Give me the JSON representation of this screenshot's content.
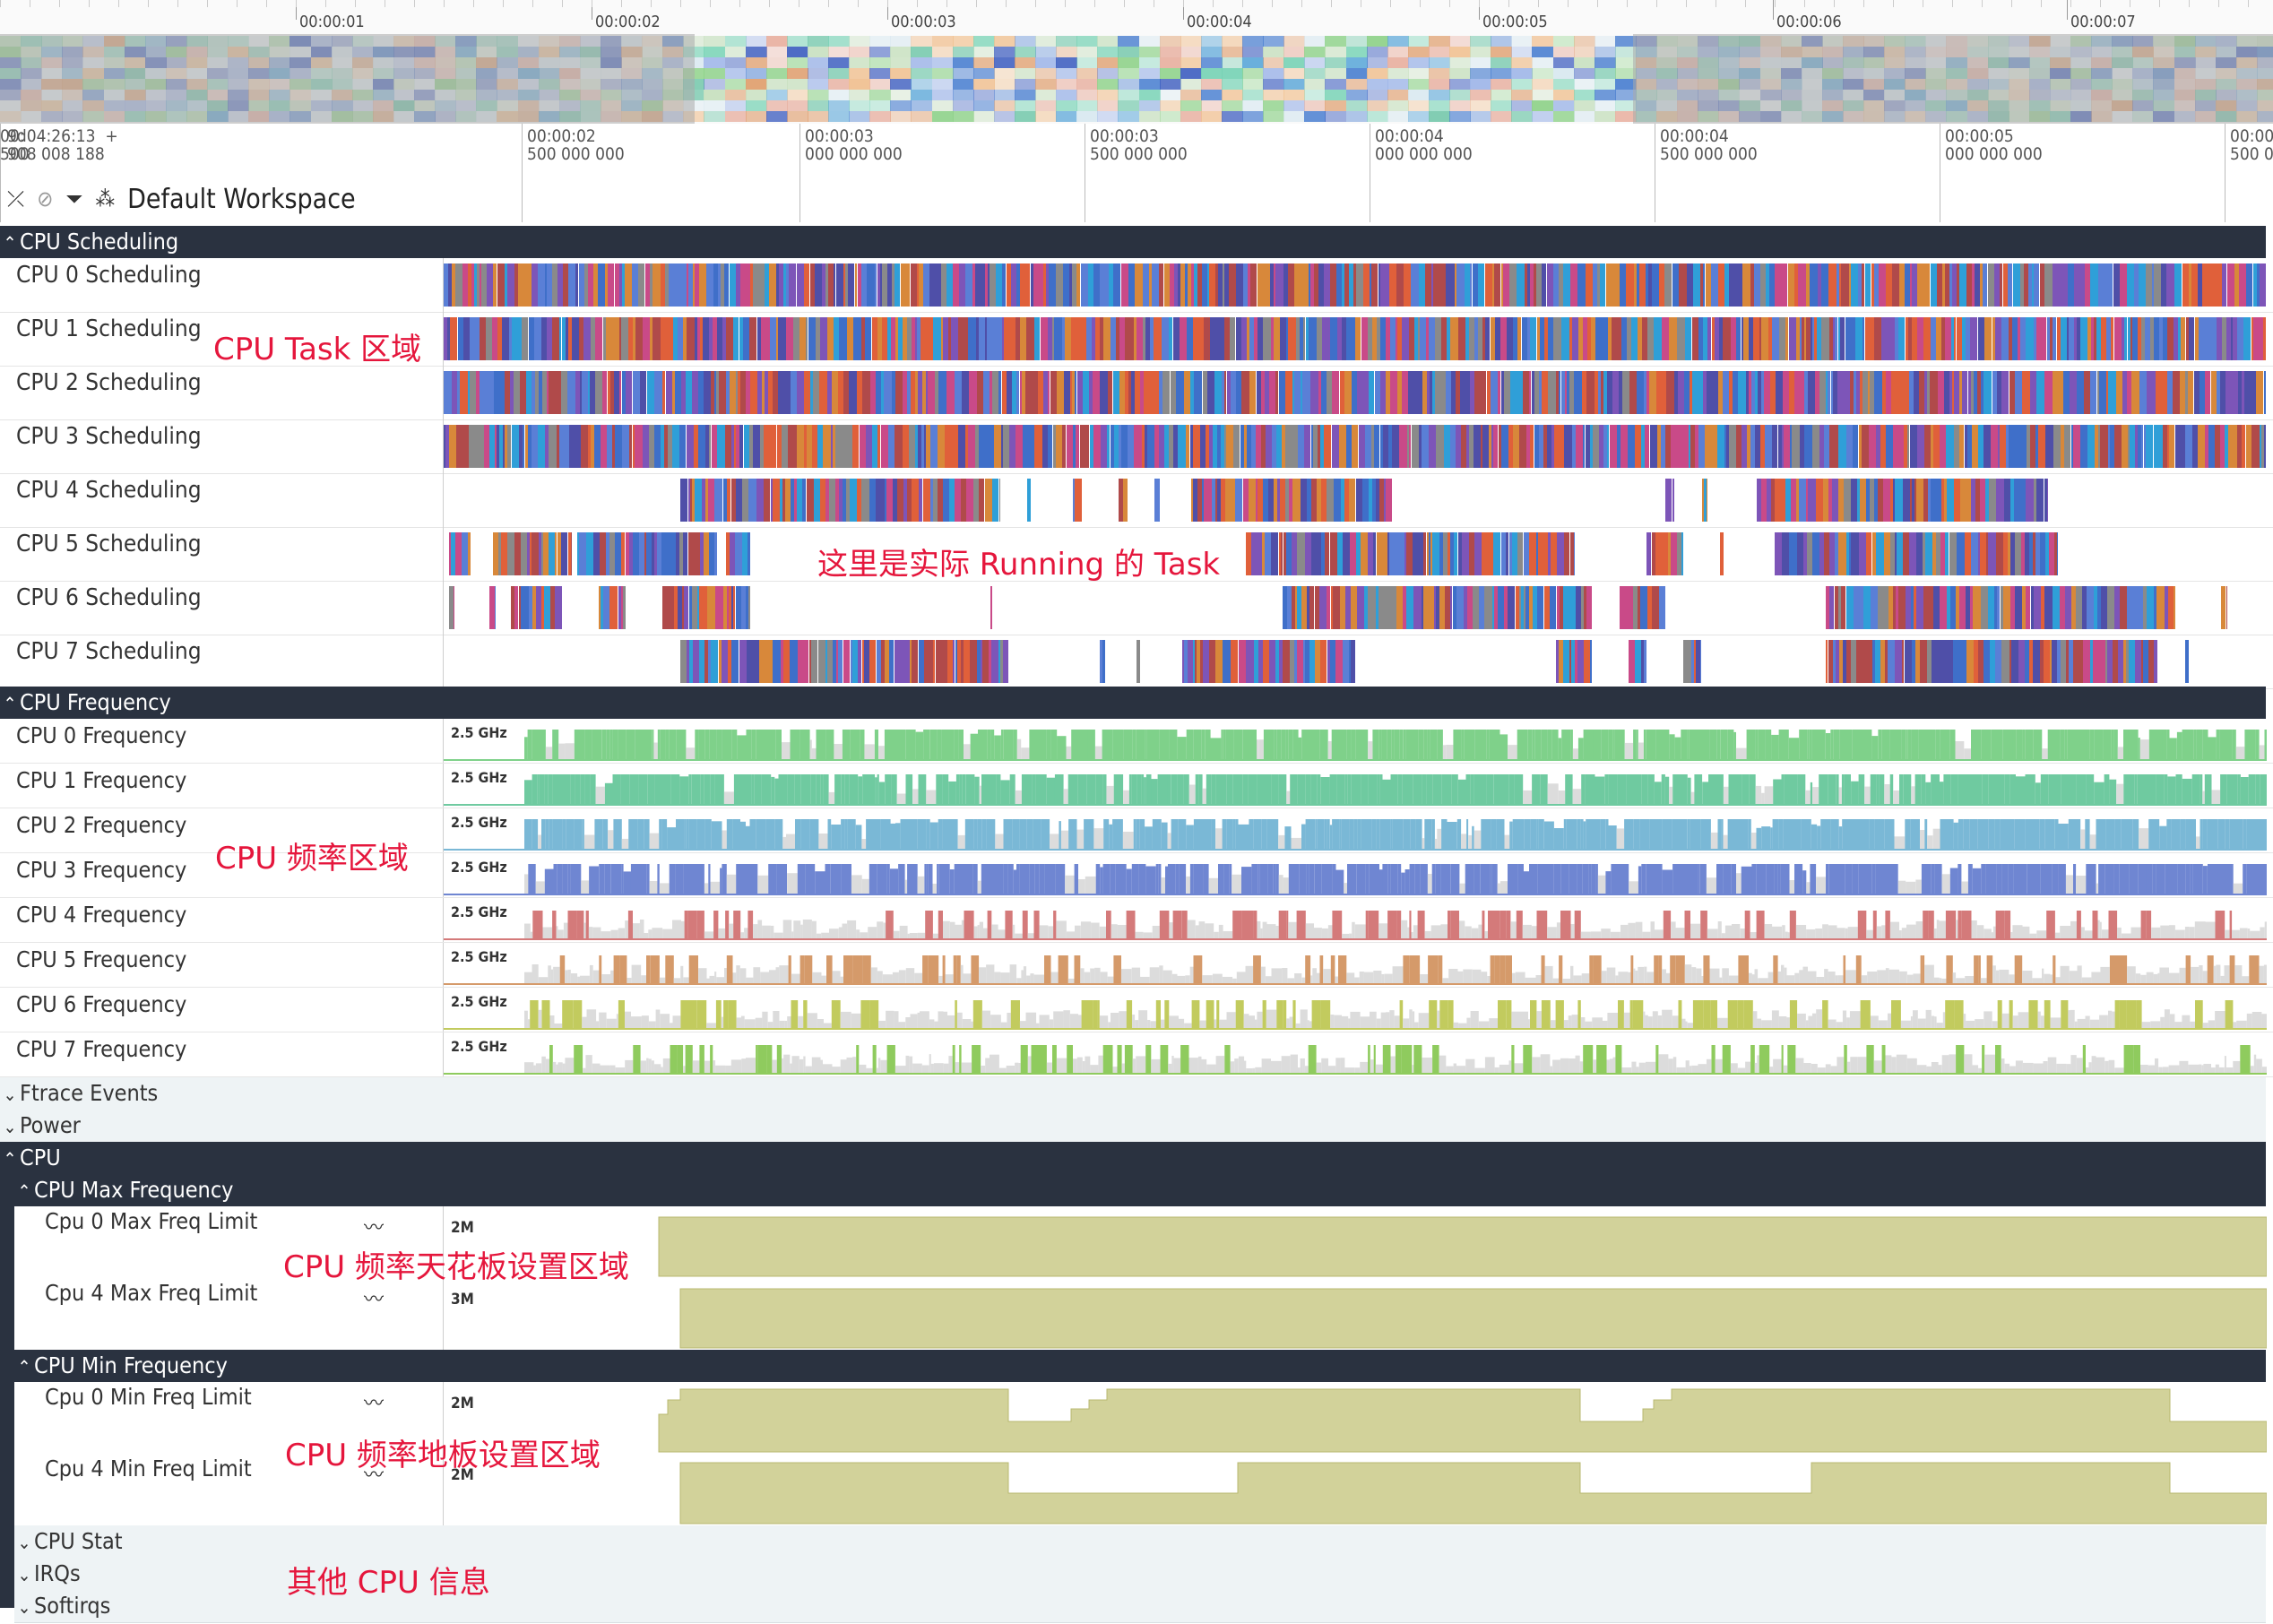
{
  "overview": {
    "ticks": [
      "00:00:01",
      "00:00:02",
      "00:00:03",
      "00:00:04",
      "00:00:05",
      "00:00:06",
      "00:00:07"
    ]
  },
  "timebar": {
    "origin": "9d04:26:13  +\n908 008 188",
    "ticks": [
      "00:00:02\n500 000 000",
      "00:00:03\n000 000 000",
      "00:00:03\n500 000 000",
      "00:00:04\n000 000 000",
      "00:00:04\n500 000 000",
      "00:00:05\n000 000 000",
      "00:00:05\n500 000 000",
      "00:\n500"
    ]
  },
  "toolbar": {
    "collapse_icon": "⤫",
    "unpin_icon": "⊘",
    "filter_icon": "⏷",
    "workspace_icon": "⁂",
    "workspace_title": "Default Workspace"
  },
  "groups": {
    "cpu_scheduling": "CPU Scheduling",
    "cpu_frequency": "CPU Frequency",
    "ftrace": "Ftrace Events",
    "power": "Power",
    "cpu": "CPU",
    "cpu_max_freq": "CPU Max Frequency",
    "cpu_min_freq": "CPU Min Frequency",
    "cpu_stat": "CPU Stat",
    "irqs": "IRQs",
    "softirqs": "Softirqs"
  },
  "scheduling_tracks": [
    "CPU 0 Scheduling",
    "CPU 1 Scheduling",
    "CPU 2 Scheduling",
    "CPU 3 Scheduling",
    "CPU 4 Scheduling",
    "CPU 5 Scheduling",
    "CPU 6 Scheduling",
    "CPU 7 Scheduling"
  ],
  "frequency_tracks": [
    "CPU 0 Frequency",
    "CPU 1 Frequency",
    "CPU 2 Frequency",
    "CPU 3 Frequency",
    "CPU 4 Frequency",
    "CPU 5 Frequency",
    "CPU 6 Frequency",
    "CPU 7 Frequency"
  ],
  "frequency_max_label": "2.5 GHz",
  "frequency_colors": [
    "#7fd18a",
    "#6fcaa0",
    "#7ab8d6",
    "#6f86d2",
    "#d47a7a",
    "#d59a6a",
    "#c2cb5e",
    "#8fcb5e"
  ],
  "limit_tracks": {
    "max": [
      {
        "name": "Cpu 0 Max Freq Limit",
        "scale": "2M"
      },
      {
        "name": "Cpu 4 Max Freq Limit",
        "scale": "3M"
      }
    ],
    "min": [
      {
        "name": "Cpu 0 Min Freq Limit",
        "scale": "2M"
      },
      {
        "name": "Cpu 4 Min Freq Limit",
        "scale": "2M"
      }
    ]
  },
  "limit_color": "#d2d29a",
  "annotations": {
    "task_area": "CPU Task 区域",
    "running_task": "这里是实际 Running 的 Task",
    "freq_area": "CPU 频率区域",
    "max_area": "CPU 频率天花板设置区域",
    "min_area": "CPU 频率地板设置区域",
    "other": "其他 CPU 信息"
  },
  "task_palette": [
    "#3f6fc9",
    "#e0603a",
    "#7d55b8",
    "#2f9fd8",
    "#8a8a8a",
    "#c94a88",
    "#4f4fa8",
    "#d8883a",
    "#5a7fd6",
    "#b04a4a"
  ]
}
